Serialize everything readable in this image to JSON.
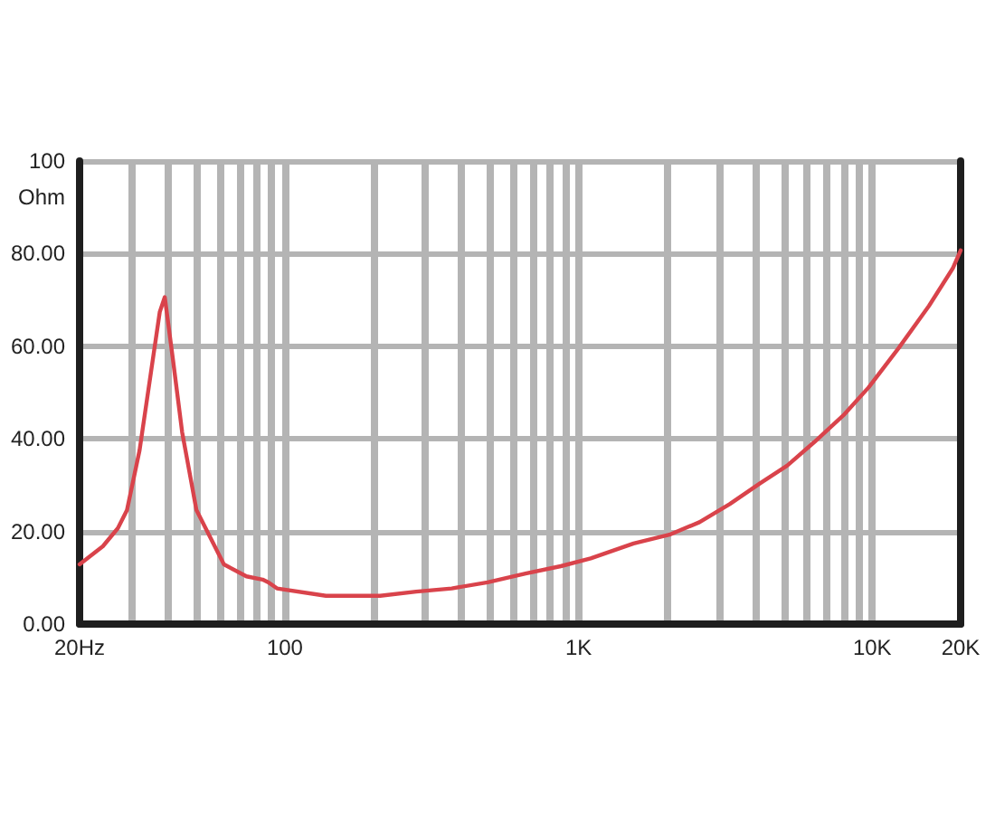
{
  "chart_data": {
    "type": "line",
    "ylabel": "Ohm",
    "x": [
      20,
      24,
      27,
      29,
      32,
      35,
      37.5,
      39,
      41.6,
      44.7,
      50,
      62,
      74,
      84,
      88,
      94,
      138,
      211,
      280,
      370,
      490,
      660,
      870,
      1100,
      1540,
      2040,
      2580,
      3270,
      4150,
      5130,
      6350,
      8040,
      9720,
      12300,
      15600,
      18800,
      20000
    ],
    "values": [
      12.9,
      16.8,
      20.7,
      24.6,
      37.5,
      54.4,
      67.4,
      70.6,
      57,
      41.4,
      24.6,
      12.9,
      10.3,
      9.6,
      9,
      7.7,
      6.1,
      6.1,
      7,
      7.7,
      9,
      10.9,
      12.5,
      14.2,
      17.4,
      19.3,
      22,
      25.9,
      30.4,
      34.2,
      39.3,
      45.3,
      51.1,
      59.6,
      68.7,
      76.8,
      80.7
    ],
    "color": "#d9434b",
    "log": "x",
    "xlim": [
      20,
      20000
    ],
    "xticks": [
      {
        "value": 20,
        "label": "20Hz"
      },
      {
        "value": 30,
        "label": null
      },
      {
        "value": 40,
        "label": null
      },
      {
        "value": 50,
        "label": null
      },
      {
        "value": 60,
        "label": null
      },
      {
        "value": 70,
        "label": null
      },
      {
        "value": 80,
        "label": null
      },
      {
        "value": 90,
        "label": null
      },
      100,
      {
        "value": 200,
        "label": null
      },
      {
        "value": 300,
        "label": null
      },
      {
        "value": 400,
        "label": null
      },
      {
        "value": 500,
        "label": null
      },
      {
        "value": 600,
        "label": null
      },
      {
        "value": 700,
        "label": null
      },
      {
        "value": 800,
        "label": null
      },
      {
        "value": 900,
        "label": null
      },
      {
        "value": 1000,
        "label": "1K"
      },
      {
        "value": 2000,
        "label": null
      },
      {
        "value": 3000,
        "label": null
      },
      {
        "value": 4000,
        "label": null
      },
      {
        "value": 5000,
        "label": null
      },
      {
        "value": 6000,
        "label": null
      },
      {
        "value": 7000,
        "label": null
      },
      {
        "value": 8000,
        "label": null
      },
      {
        "value": 9000,
        "label": null
      },
      {
        "value": 10000,
        "label": "10K"
      },
      {
        "value": 20000,
        "label": "20K"
      }
    ],
    "ylim": [
      0,
      100
    ],
    "yticks": [
      {
        "value": 0,
        "label": "0.00"
      },
      {
        "value": 20,
        "label": "20.00"
      },
      {
        "value": 40,
        "label": "40.00"
      },
      {
        "value": 60,
        "label": "60.00"
      },
      {
        "value": 80,
        "label": "80.00"
      },
      100
    ],
    "grid": true
  }
}
